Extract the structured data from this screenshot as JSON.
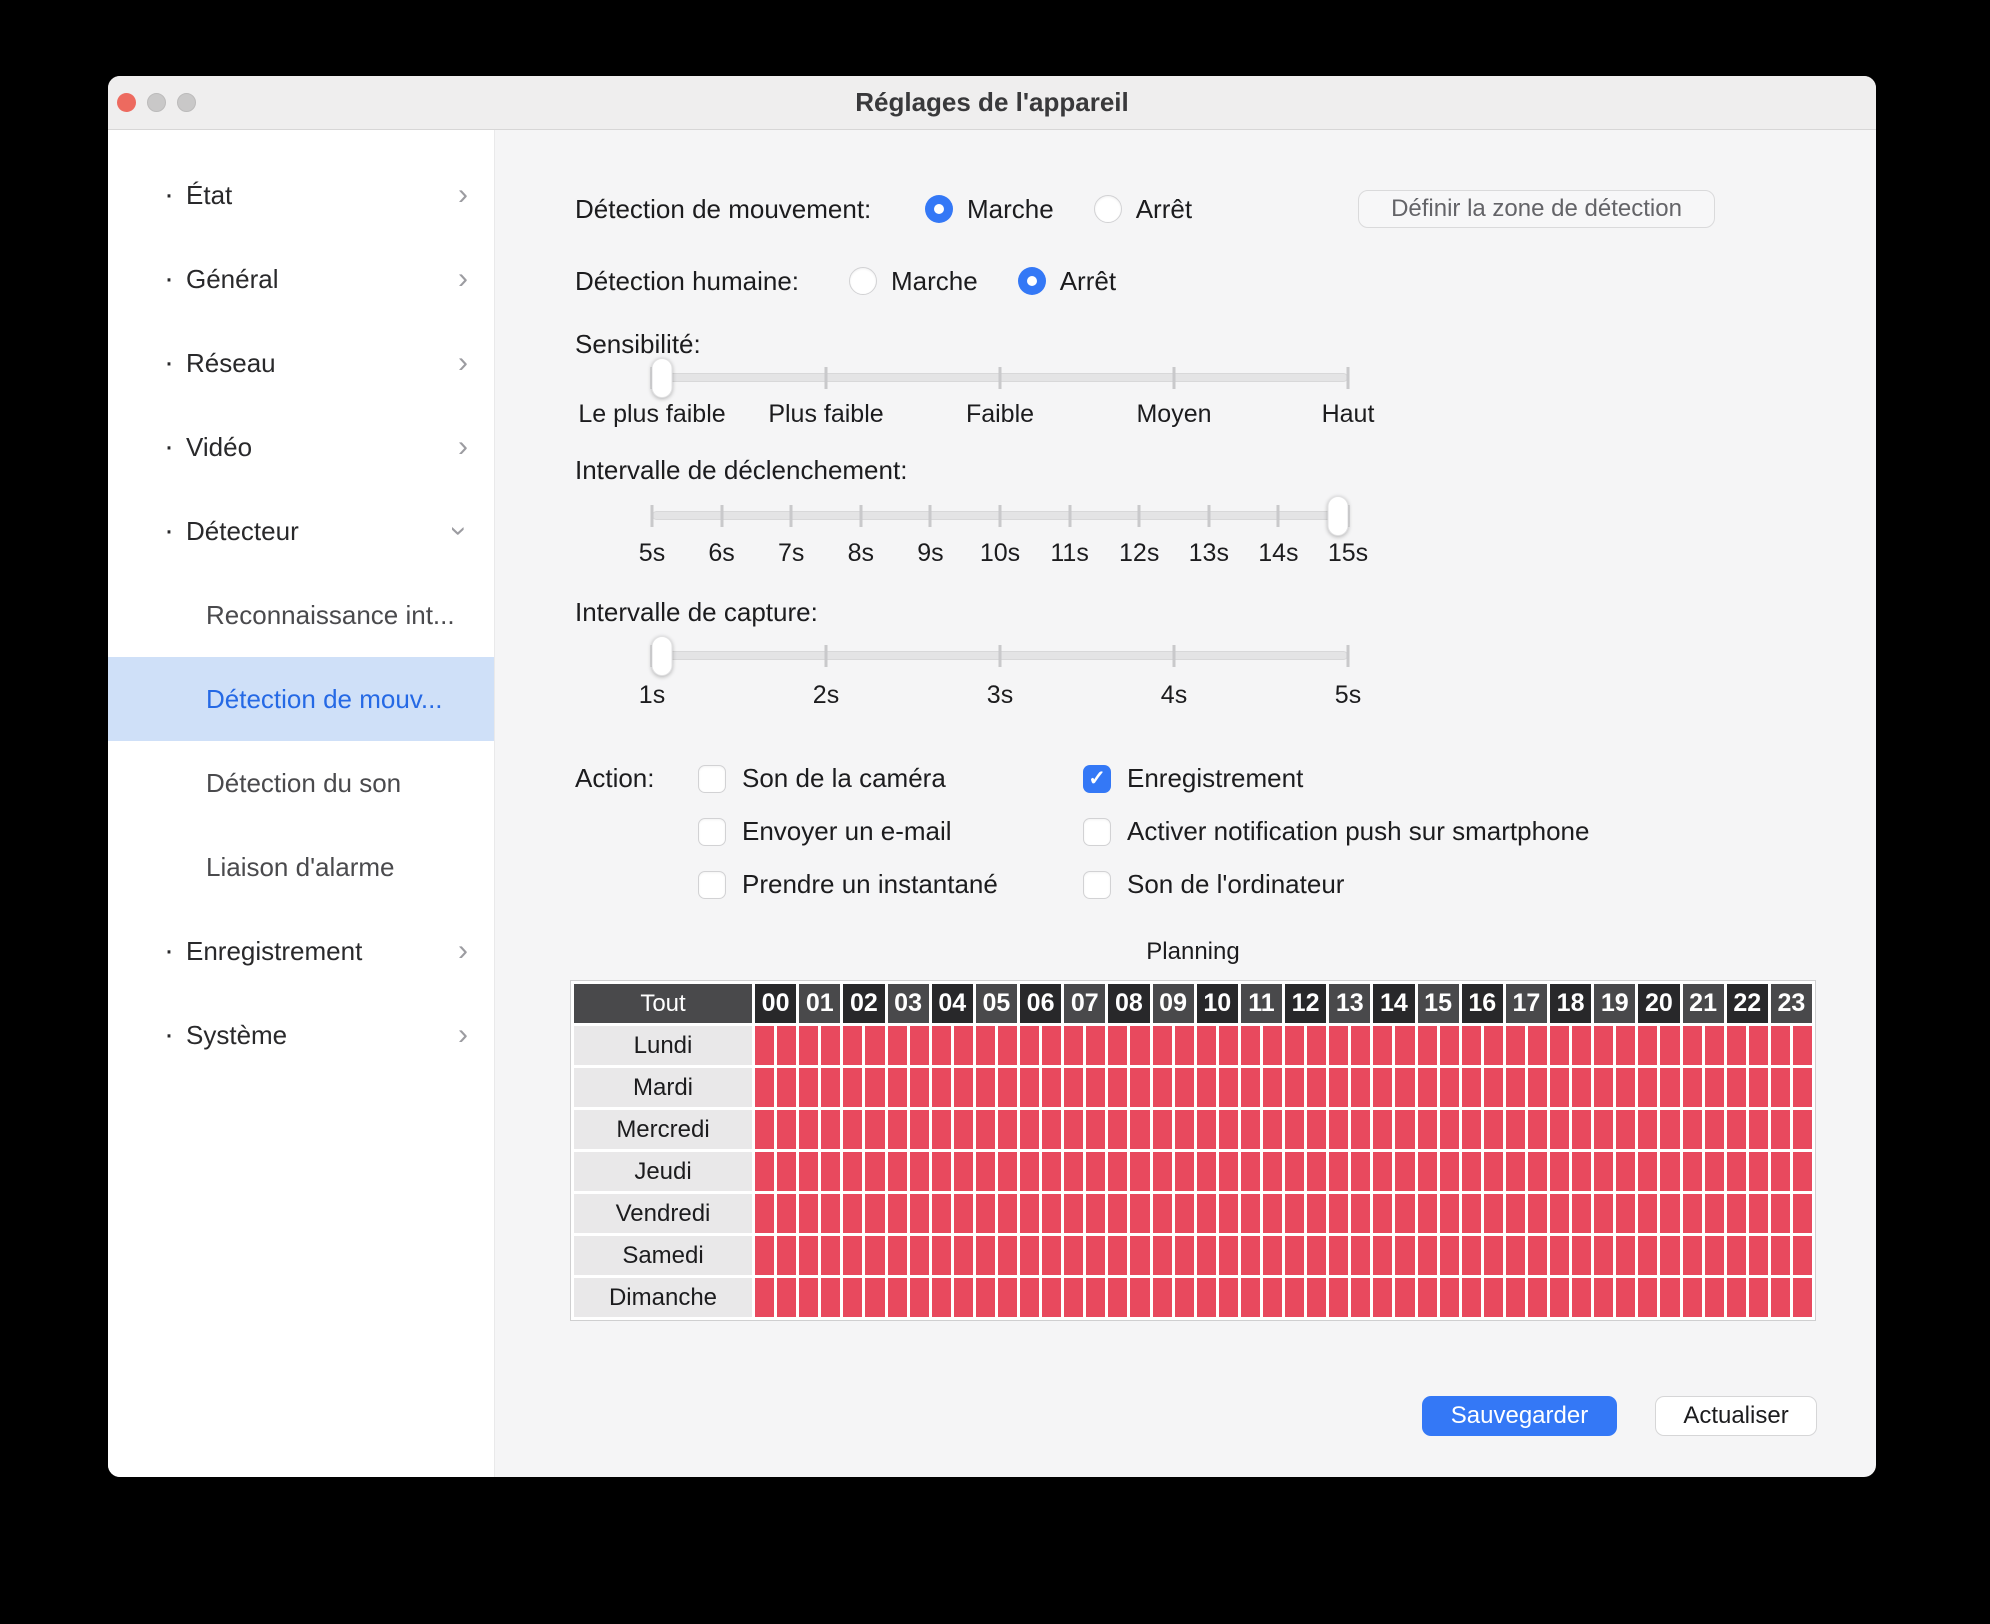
{
  "window": {
    "title": "Réglages de l'appareil"
  },
  "colors": {
    "accent": "#3478f6",
    "schedule_red": "#e8495e",
    "header_dark": "#28282a",
    "header_mid": "#49494b",
    "sidebar_selected_bg": "#cfe0f8",
    "sidebar_selected_text": "#2569e5"
  },
  "sidebar": {
    "items": [
      {
        "label": "État",
        "sub": false,
        "chevron": "right",
        "selected": false
      },
      {
        "label": "Général",
        "sub": false,
        "chevron": "right",
        "selected": false
      },
      {
        "label": "Réseau",
        "sub": false,
        "chevron": "right",
        "selected": false
      },
      {
        "label": "Vidéo",
        "sub": false,
        "chevron": "right",
        "selected": false
      },
      {
        "label": "Détecteur",
        "sub": false,
        "chevron": "down",
        "selected": false
      },
      {
        "label": "Reconnaissance int...",
        "sub": true,
        "chevron": null,
        "selected": false
      },
      {
        "label": "Détection de mouv...",
        "sub": true,
        "chevron": null,
        "selected": true
      },
      {
        "label": "Détection du son",
        "sub": true,
        "chevron": null,
        "selected": false
      },
      {
        "label": "Liaison d'alarme",
        "sub": true,
        "chevron": null,
        "selected": false
      },
      {
        "label": "Enregistrement",
        "sub": false,
        "chevron": "right",
        "selected": false
      },
      {
        "label": "Système",
        "sub": false,
        "chevron": "right",
        "selected": false
      }
    ]
  },
  "content": {
    "motion": {
      "label": "Détection de mouvement:",
      "options": [
        {
          "label": "Marche",
          "selected": true
        },
        {
          "label": "Arrêt",
          "selected": false
        }
      ]
    },
    "zone_button": "Définir la zone de détection",
    "human": {
      "label": "Détection humaine:",
      "options": [
        {
          "label": "Marche",
          "selected": false
        },
        {
          "label": "Arrêt",
          "selected": true
        }
      ]
    },
    "sensitivity": {
      "label": "Sensibilité:",
      "ticks": [
        "Le plus faible",
        "Plus faible",
        "Faible",
        "Moyen",
        "Haut"
      ],
      "value_index": 0
    },
    "trigger_interval": {
      "label": "Intervalle de déclenchement:",
      "ticks": [
        "5s",
        "6s",
        "7s",
        "8s",
        "9s",
        "10s",
        "11s",
        "12s",
        "13s",
        "14s",
        "15s"
      ],
      "value_index": 10
    },
    "capture_interval": {
      "label": "Intervalle de capture:",
      "ticks": [
        "1s",
        "2s",
        "3s",
        "4s",
        "5s"
      ],
      "value_index": 0
    },
    "action": {
      "label": "Action:",
      "columns": [
        {
          "items": [
            {
              "label": "Son de la caméra",
              "checked": false
            },
            {
              "label": "Envoyer un e-mail",
              "checked": false
            },
            {
              "label": "Prendre un instantané",
              "checked": false
            }
          ]
        },
        {
          "items": [
            {
              "label": "Enregistrement",
              "checked": true
            },
            {
              "label": "Activer notification push sur smartphone",
              "checked": false
            },
            {
              "label": "Son de l'ordinateur",
              "checked": false
            }
          ]
        }
      ]
    },
    "planning": {
      "title": "Planning",
      "corner": "Tout",
      "hours": [
        "00",
        "01",
        "02",
        "03",
        "04",
        "05",
        "06",
        "07",
        "08",
        "09",
        "10",
        "11",
        "12",
        "13",
        "14",
        "15",
        "16",
        "17",
        "18",
        "19",
        "20",
        "21",
        "22",
        "23"
      ],
      "days": [
        "Lundi",
        "Mardi",
        "Mercredi",
        "Jeudi",
        "Vendredi",
        "Samedi",
        "Dimanche"
      ],
      "cells_per_hour": 2,
      "all_selected": true
    },
    "buttons": {
      "save": "Sauvegarder",
      "refresh": "Actualiser"
    }
  }
}
